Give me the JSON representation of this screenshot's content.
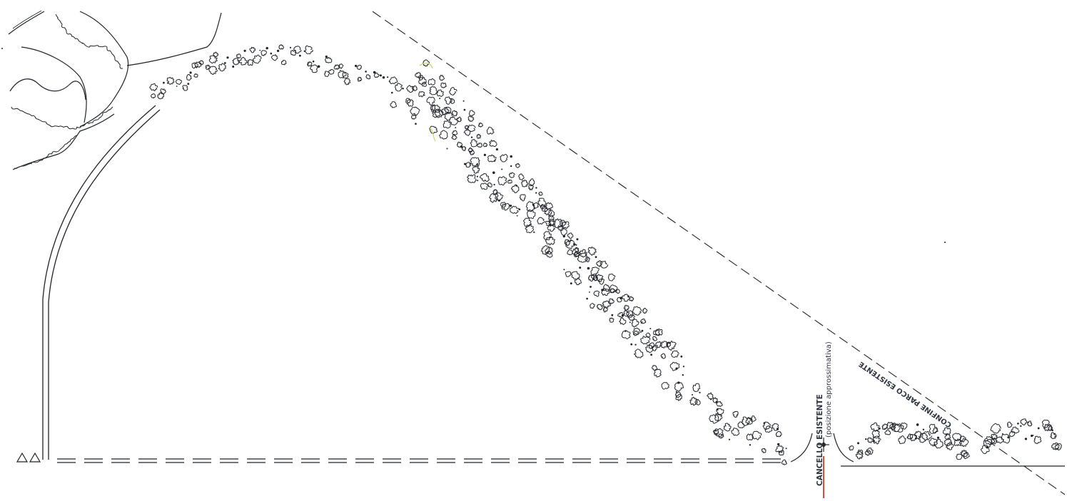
{
  "labels": {
    "boundary": "CONFINE PARCO ESISTENTE",
    "gate_existing": "CANCELLO ESISTENTE",
    "gate_note": "(posizione approssimativa)"
  },
  "colors": {
    "ink": "#1f2329",
    "hatch": "#2f3640",
    "gate_line": "#d9483b",
    "paper": "#ffffff",
    "highlight": "#c8d96b"
  },
  "icons": {
    "gate_symbol": "crosshair-star-icon",
    "wall_ends": "triangle-markers"
  }
}
